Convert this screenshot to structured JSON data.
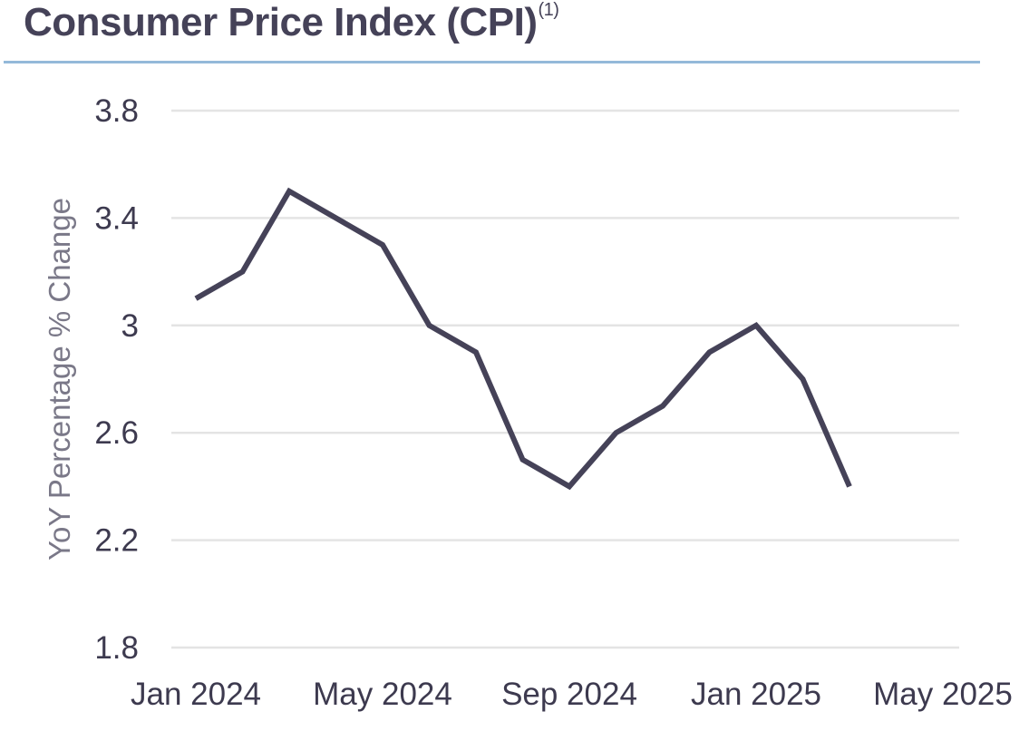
{
  "title": {
    "text": "Consumer Price Index (CPI)",
    "footnote": "(1)"
  },
  "colors": {
    "title": "#454258",
    "rule": "#94b9d9",
    "line": "#454258",
    "grid": "#e4e4e4",
    "tick_text": "#3d3a4f",
    "axis_title": "#7a7888"
  },
  "chart_data": {
    "type": "line",
    "title": "Consumer Price Index (CPI)",
    "xlabel": "",
    "ylabel": "YoY Percentage % Change",
    "ylim": [
      1.8,
      3.8
    ],
    "yticks": [
      "3.8",
      "3.4",
      "3",
      "2.6",
      "2.2",
      "1.8"
    ],
    "xlim": [
      "2024-01",
      "2025-05"
    ],
    "xticks": [
      "Jan 2024",
      "May 2024",
      "Sep 2024",
      "Jan 2025",
      "May 2025"
    ],
    "grid": true,
    "series": [
      {
        "x": [
          "2024-01",
          "2024-02",
          "2024-03",
          "2024-04",
          "2024-05",
          "2024-06",
          "2024-07",
          "2024-08",
          "2024-09",
          "2024-10",
          "2024-11",
          "2024-12",
          "2025-01",
          "2025-02",
          "2025-03"
        ],
        "values": [
          3.1,
          3.2,
          3.5,
          3.4,
          3.3,
          3.0,
          2.9,
          2.5,
          2.4,
          2.6,
          2.7,
          2.9,
          3.0,
          2.8,
          2.4
        ]
      }
    ]
  }
}
